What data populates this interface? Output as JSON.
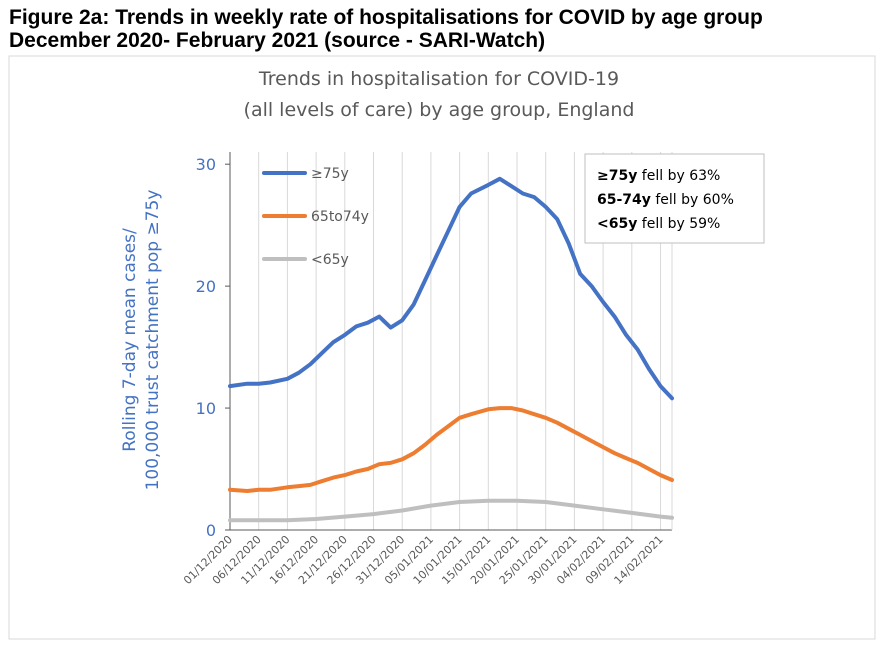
{
  "figure": {
    "heading_line1": "Figure 2a: Trends in weekly rate of hospitalisations for COVID by age group",
    "heading_line2": "December 2020- February 2021 (source - SARI-Watch)"
  },
  "chart_data": {
    "type": "line",
    "title_line1": "Trends in hospitalisation for COVID-19",
    "title_line2": "(all levels of care) by age group, England",
    "ylabel_line1": "Rolling  7-day mean cases/",
    "ylabel_line2": "100,000 trust catchment pop ≥75y",
    "xlabel": "",
    "ylim": [
      0,
      31
    ],
    "yticks": [
      0,
      10,
      20,
      30
    ],
    "x_start": "2020-12-01",
    "x_end": "2021-02-16",
    "xticks": [
      "01/12/2020",
      "06/12/2020",
      "11/12/2020",
      "16/12/2020",
      "21/12/2020",
      "26/12/2020",
      "31/12/2020",
      "05/01/2021",
      "10/01/2021",
      "15/01/2021",
      "20/01/2021",
      "25/01/2021",
      "30/01/2021",
      "04/02/2021",
      "09/02/2021",
      "14/02/2021"
    ],
    "grid": "vertical",
    "legend_position": "top-left",
    "series": [
      {
        "name": "≥75y",
        "color": "#4472C4",
        "points": [
          [
            "2020-12-01",
            11.8
          ],
          [
            "2020-12-04",
            12.0
          ],
          [
            "2020-12-06",
            12.0
          ],
          [
            "2020-12-08",
            12.1
          ],
          [
            "2020-12-11",
            12.4
          ],
          [
            "2020-12-13",
            12.9
          ],
          [
            "2020-12-15",
            13.6
          ],
          [
            "2020-12-17",
            14.5
          ],
          [
            "2020-12-19",
            15.4
          ],
          [
            "2020-12-21",
            16.0
          ],
          [
            "2020-12-23",
            16.7
          ],
          [
            "2020-12-25",
            17.0
          ],
          [
            "2020-12-27",
            17.5
          ],
          [
            "2020-12-29",
            16.6
          ],
          [
            "2020-12-31",
            17.2
          ],
          [
            "2021-01-02",
            18.5
          ],
          [
            "2021-01-04",
            20.5
          ],
          [
            "2021-01-06",
            22.5
          ],
          [
            "2021-01-08",
            24.5
          ],
          [
            "2021-01-10",
            26.5
          ],
          [
            "2021-01-12",
            27.6
          ],
          [
            "2021-01-15",
            28.3
          ],
          [
            "2021-01-17",
            28.8
          ],
          [
            "2021-01-19",
            28.2
          ],
          [
            "2021-01-21",
            27.6
          ],
          [
            "2021-01-23",
            27.3
          ],
          [
            "2021-01-25",
            26.5
          ],
          [
            "2021-01-27",
            25.5
          ],
          [
            "2021-01-29",
            23.5
          ],
          [
            "2021-01-31",
            21.0
          ],
          [
            "2021-02-02",
            20.0
          ],
          [
            "2021-02-04",
            18.7
          ],
          [
            "2021-02-06",
            17.5
          ],
          [
            "2021-02-08",
            16.0
          ],
          [
            "2021-02-10",
            14.8
          ],
          [
            "2021-02-12",
            13.2
          ],
          [
            "2021-02-14",
            11.8
          ],
          [
            "2021-02-16",
            10.8
          ]
        ]
      },
      {
        "name": "65to74y",
        "color": "#ED7D31",
        "points": [
          [
            "2020-12-01",
            3.3
          ],
          [
            "2020-12-04",
            3.2
          ],
          [
            "2020-12-06",
            3.3
          ],
          [
            "2020-12-08",
            3.3
          ],
          [
            "2020-12-11",
            3.5
          ],
          [
            "2020-12-13",
            3.6
          ],
          [
            "2020-12-15",
            3.7
          ],
          [
            "2020-12-17",
            4.0
          ],
          [
            "2020-12-19",
            4.3
          ],
          [
            "2020-12-21",
            4.5
          ],
          [
            "2020-12-23",
            4.8
          ],
          [
            "2020-12-25",
            5.0
          ],
          [
            "2020-12-27",
            5.4
          ],
          [
            "2020-12-29",
            5.5
          ],
          [
            "2020-12-31",
            5.8
          ],
          [
            "2021-01-02",
            6.3
          ],
          [
            "2021-01-04",
            7.0
          ],
          [
            "2021-01-06",
            7.8
          ],
          [
            "2021-01-08",
            8.5
          ],
          [
            "2021-01-10",
            9.2
          ],
          [
            "2021-01-12",
            9.5
          ],
          [
            "2021-01-15",
            9.9
          ],
          [
            "2021-01-17",
            10.0
          ],
          [
            "2021-01-19",
            10.0
          ],
          [
            "2021-01-21",
            9.8
          ],
          [
            "2021-01-23",
            9.5
          ],
          [
            "2021-01-25",
            9.2
          ],
          [
            "2021-01-27",
            8.8
          ],
          [
            "2021-01-29",
            8.3
          ],
          [
            "2021-01-31",
            7.8
          ],
          [
            "2021-02-02",
            7.3
          ],
          [
            "2021-02-04",
            6.8
          ],
          [
            "2021-02-06",
            6.3
          ],
          [
            "2021-02-08",
            5.9
          ],
          [
            "2021-02-10",
            5.5
          ],
          [
            "2021-02-12",
            5.0
          ],
          [
            "2021-02-14",
            4.5
          ],
          [
            "2021-02-16",
            4.1
          ]
        ]
      },
      {
        "name": "<65y",
        "color": "#BFBFBF",
        "points": [
          [
            "2020-12-01",
            0.8
          ],
          [
            "2020-12-06",
            0.8
          ],
          [
            "2020-12-11",
            0.8
          ],
          [
            "2020-12-16",
            0.9
          ],
          [
            "2020-12-21",
            1.1
          ],
          [
            "2020-12-26",
            1.3
          ],
          [
            "2020-12-31",
            1.6
          ],
          [
            "2021-01-05",
            2.0
          ],
          [
            "2021-01-10",
            2.3
          ],
          [
            "2021-01-15",
            2.4
          ],
          [
            "2021-01-20",
            2.4
          ],
          [
            "2021-01-25",
            2.3
          ],
          [
            "2021-01-30",
            2.0
          ],
          [
            "2021-02-04",
            1.7
          ],
          [
            "2021-02-09",
            1.4
          ],
          [
            "2021-02-14",
            1.1
          ],
          [
            "2021-02-16",
            1.0
          ]
        ]
      }
    ],
    "annotation": [
      {
        "bold": "≥75y",
        "text": " fell by 63%"
      },
      {
        "bold": "65-74y",
        "text": " fell by 60%"
      },
      {
        "bold": "<65y",
        "text": " fell by 59%"
      }
    ]
  }
}
